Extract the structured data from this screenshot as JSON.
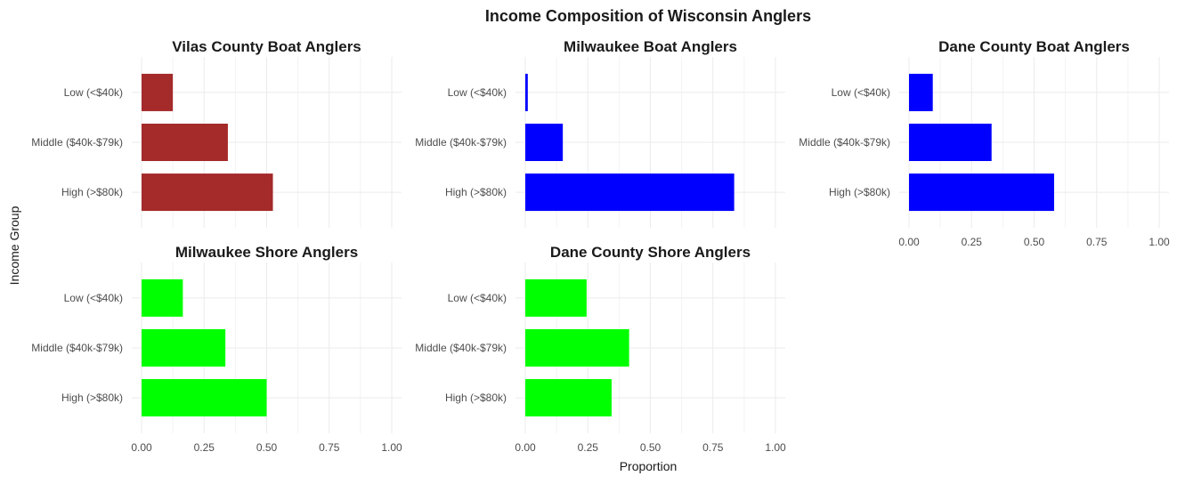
{
  "chart_data": {
    "type": "bar",
    "orientation": "horizontal",
    "title": "Income Composition of Wisconsin Anglers",
    "xlabel": "Proportion",
    "ylabel": "Income Group",
    "xlim": [
      0,
      1
    ],
    "x_ticks": [
      "0.00",
      "0.25",
      "0.50",
      "0.75",
      "1.00"
    ],
    "grid": true,
    "categories": [
      "Low (<$40k)",
      "Middle ($40k-$79k)",
      "High (>$80k)"
    ],
    "panels": [
      {
        "name": "Vilas County Boat Anglers",
        "color": "#a52a2a",
        "values": [
          0.125,
          0.345,
          0.525
        ]
      },
      {
        "name": "Milwaukee Boat Anglers",
        "color": "#0000ff",
        "values": [
          0.01,
          0.15,
          0.835
        ]
      },
      {
        "name": "Dane County Boat Anglers",
        "color": "#0000ff",
        "values": [
          0.095,
          0.33,
          0.58
        ]
      },
      {
        "name": "Milwaukee Shore Anglers",
        "color": "#00ff00",
        "values": [
          0.165,
          0.335,
          0.5
        ]
      },
      {
        "name": "Dane County Shore Anglers",
        "color": "#00ff00",
        "values": [
          0.245,
          0.415,
          0.345
        ]
      }
    ]
  }
}
